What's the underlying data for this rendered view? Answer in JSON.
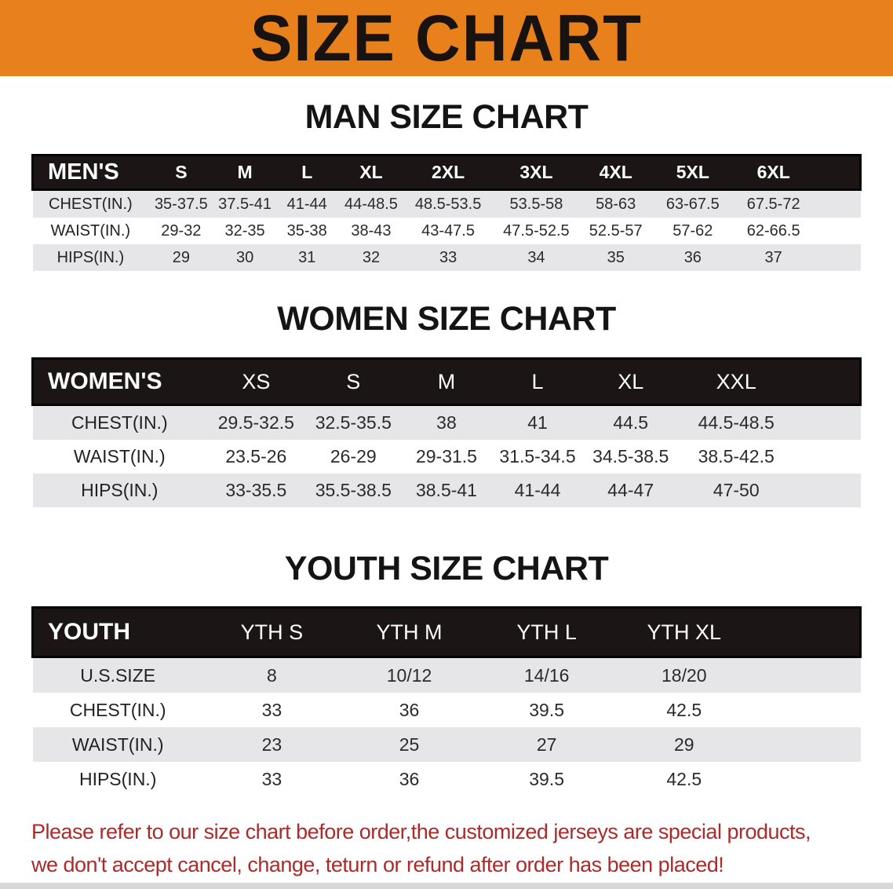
{
  "banner": {
    "title": "SIZE CHART"
  },
  "colors": {
    "banner_bg": "#E8811C",
    "header_bar_bg": "#1B1516",
    "row_alt_bg": "#E6E6E8",
    "disclaimer_red": "#AB2B2B"
  },
  "sections": {
    "men": {
      "heading": "MAN SIZE CHART",
      "table": {
        "label": "MEN'S",
        "columns": [
          "S",
          "M",
          "L",
          "XL",
          "2XL",
          "3XL",
          "4XL",
          "5XL",
          "6XL"
        ],
        "rows": [
          {
            "label": "CHEST(IN.)",
            "values": [
              "35-37.5",
              "37.5-41",
              "41-44",
              "44-48.5",
              "48.5-53.5",
              "53.5-58",
              "58-63",
              "63-67.5",
              "67.5-72"
            ]
          },
          {
            "label": "WAIST(IN.)",
            "values": [
              "29-32",
              "32-35",
              "35-38",
              "38-43",
              "43-47.5",
              "47.5-52.5",
              "52.5-57",
              "57-62",
              "62-66.5"
            ]
          },
          {
            "label": "HIPS(IN.)",
            "values": [
              "29",
              "30",
              "31",
              "32",
              "33",
              "34",
              "35",
              "36",
              "37"
            ]
          }
        ]
      }
    },
    "women": {
      "heading": "WOMEN SIZE CHART",
      "table": {
        "label": "WOMEN'S",
        "columns": [
          "XS",
          "S",
          "M",
          "L",
          "XL",
          "XXL"
        ],
        "rows": [
          {
            "label": "CHEST(IN.)",
            "values": [
              "29.5-32.5",
              "32.5-35.5",
              "38",
              "41",
              "44.5",
              "44.5-48.5"
            ]
          },
          {
            "label": "WAIST(IN.)",
            "values": [
              "23.5-26",
              "26-29",
              "29-31.5",
              "31.5-34.5",
              "34.5-38.5",
              "38.5-42.5"
            ]
          },
          {
            "label": "HIPS(IN.)",
            "values": [
              "33-35.5",
              "35.5-38.5",
              "38.5-41",
              "41-44",
              "44-47",
              "47-50"
            ]
          }
        ]
      }
    },
    "youth": {
      "heading": "YOUTH SIZE CHART",
      "table": {
        "label": "YOUTH",
        "columns": [
          "YTH S",
          "YTH M",
          "YTH L",
          "YTH XL"
        ],
        "rows": [
          {
            "label": "U.S.SIZE",
            "values": [
              "8",
              "10/12",
              "14/16",
              "18/20"
            ]
          },
          {
            "label": "CHEST(IN.)",
            "values": [
              "33",
              "36",
              "39.5",
              "42.5"
            ]
          },
          {
            "label": "WAIST(IN.)",
            "values": [
              "23",
              "25",
              "27",
              "29"
            ]
          },
          {
            "label": "HIPS(IN.)",
            "values": [
              "33",
              "36",
              "39.5",
              "42.5"
            ]
          }
        ]
      }
    }
  },
  "disclaimer": {
    "line1": "Please refer to our size chart before order,the customized jerseys are special products,",
    "line2": "we don't accept cancel, change, teturn or refund after order has been placed!"
  }
}
